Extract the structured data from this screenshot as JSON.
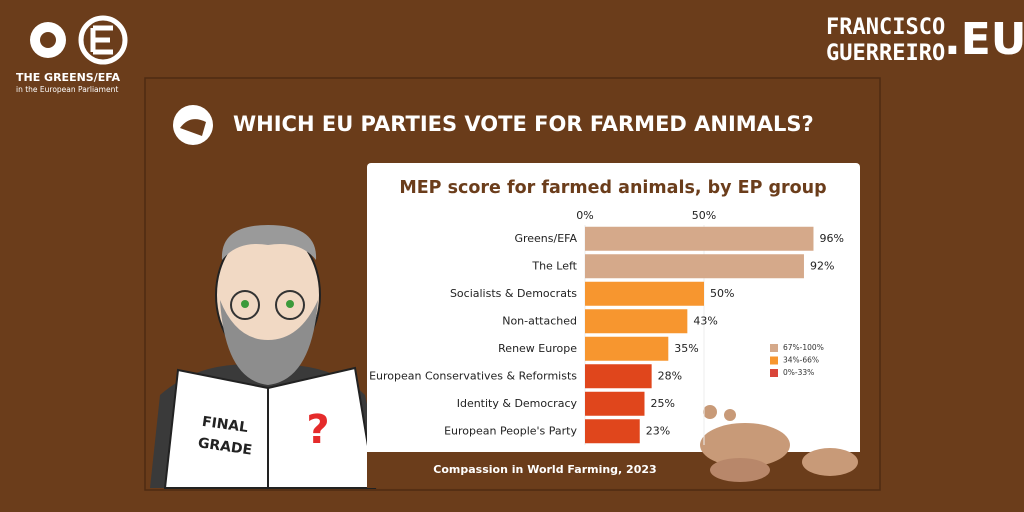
{
  "header": {
    "title": "WHICH EU PARTIES VOTE FOR FARMED ANIMALS?",
    "logo_left": {
      "name": "THE GREENS/EFA",
      "subtitle": "in the European Parliament"
    },
    "logo_right": {
      "line1": "FRANCISCO",
      "line2": "GUERREIRO",
      "suffix": ".EU"
    }
  },
  "illustration": {
    "sign_left": [
      "FINAL",
      "GRADE"
    ],
    "sign_right": "?"
  },
  "chart_data": {
    "type": "bar",
    "title": "MEP score for farmed animals, by EP group",
    "categories": [
      "Greens/EFA",
      "The Left",
      "Socialists & Democrats",
      "Non-attached",
      "Renew Europe",
      "European Conservatives & Reformists",
      "Identity & Democracy",
      "European People's Party"
    ],
    "values": [
      96,
      92,
      50,
      43,
      35,
      28,
      25,
      23
    ],
    "value_labels": [
      "96%",
      "92%",
      "50%",
      "43%",
      "35%",
      "28%",
      "25%",
      "23%"
    ],
    "colors": [
      "#d5a98a",
      "#d5a98a",
      "#f7962f",
      "#f7962f",
      "#f7962f",
      "#e0461c",
      "#e0461c",
      "#e0461c"
    ],
    "xlim": [
      0,
      100
    ],
    "xticks": [
      {
        "value": 0,
        "label": "0%"
      },
      {
        "value": 50,
        "label": "50%"
      }
    ],
    "grid": true,
    "legend": [
      {
        "name": "67%-100%",
        "color": "#d5a98a"
      },
      {
        "name": "34%-66%",
        "color": "#f7962f"
      },
      {
        "name": "0%-33%",
        "color": "#d9453a"
      }
    ],
    "legend_position": "right",
    "source": "Compassion in World Farming, 2023"
  }
}
